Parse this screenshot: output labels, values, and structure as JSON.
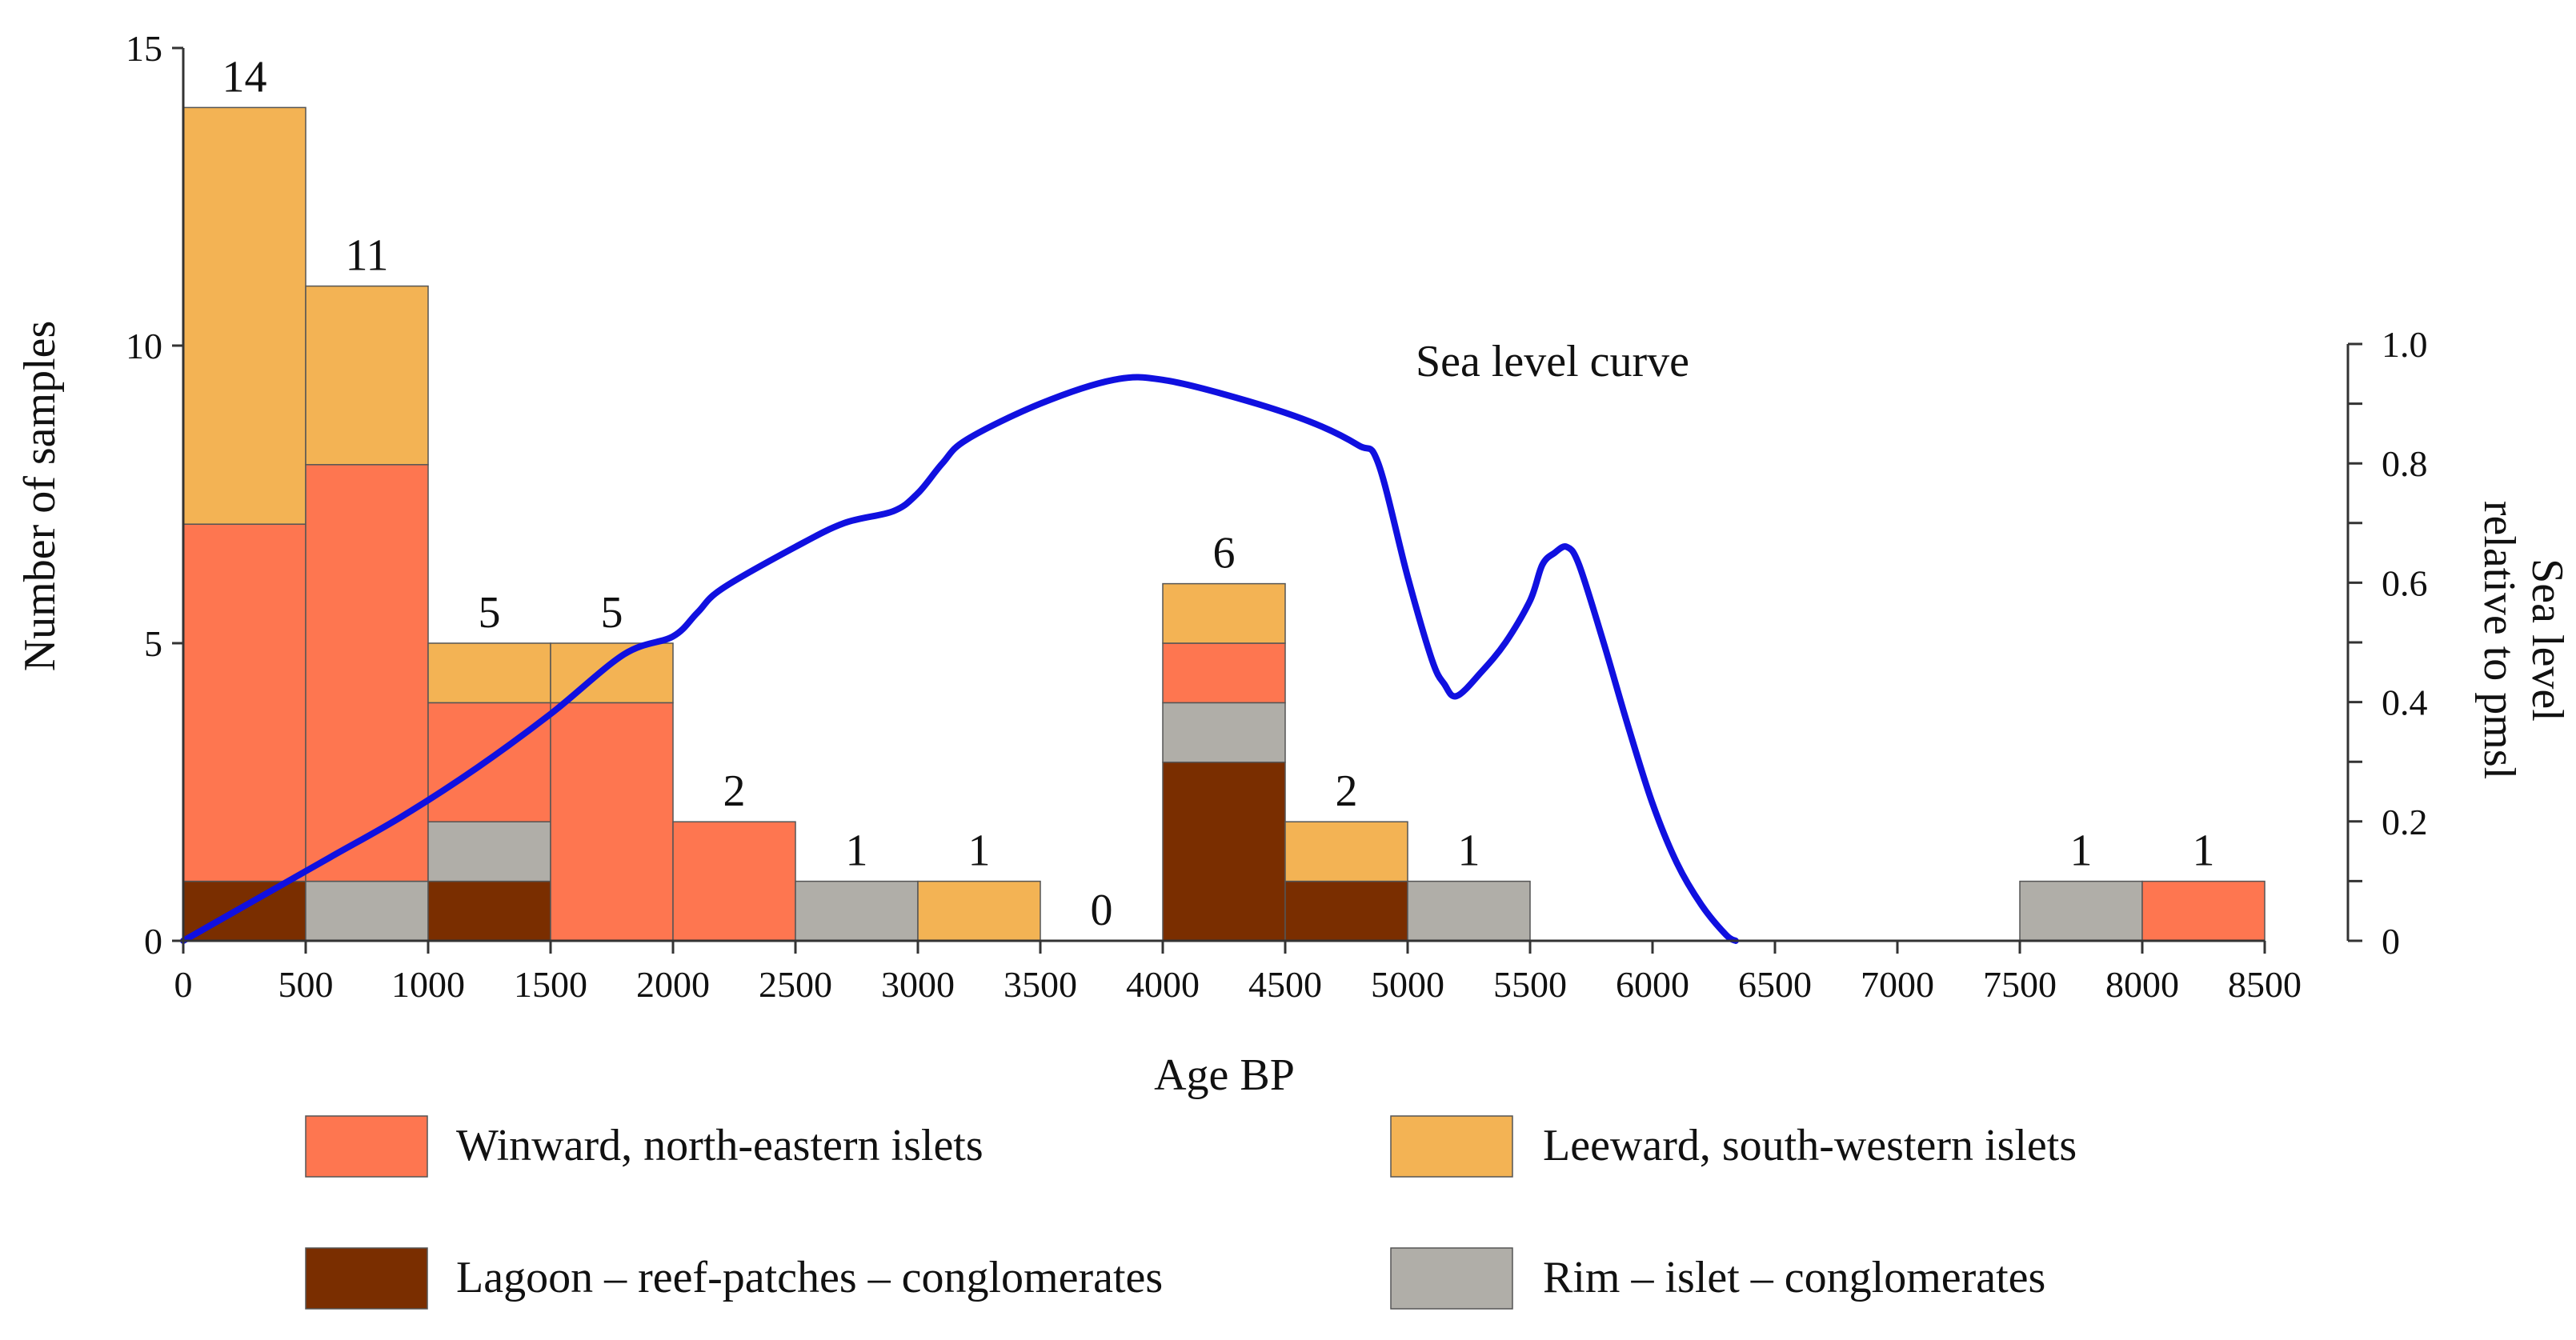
{
  "chart_data": {
    "type": "bar",
    "subtype": "stacked histogram with line overlay",
    "xlabel": "Age BP",
    "ylabel": "Number of samples",
    "y2label": [
      "Sea level",
      "relative to pmsl"
    ],
    "xlim": [
      0,
      8500
    ],
    "ylim": [
      0,
      15
    ],
    "y2lim": [
      0,
      1.0
    ],
    "x_ticks": [
      "0",
      "500",
      "1000",
      "1500",
      "2000",
      "2500",
      "3000",
      "3500",
      "4000",
      "4500",
      "5000",
      "5500",
      "6000",
      "6500",
      "7000",
      "7500",
      "8000",
      "8500"
    ],
    "y_ticks": [
      "0",
      "5",
      "10",
      "15"
    ],
    "y2_ticks": [
      "0",
      "0.2",
      "0.4",
      "0.6",
      "0.8",
      "1.0"
    ],
    "bins": [
      {
        "x0": 0,
        "x1": 500,
        "total": "14"
      },
      {
        "x0": 500,
        "x1": 1000,
        "total": "11"
      },
      {
        "x0": 1000,
        "x1": 1500,
        "total": "5"
      },
      {
        "x0": 1500,
        "x1": 2000,
        "total": "5"
      },
      {
        "x0": 2000,
        "x1": 2500,
        "total": "2"
      },
      {
        "x0": 2500,
        "x1": 3000,
        "total": "1"
      },
      {
        "x0": 3000,
        "x1": 3500,
        "total": "1"
      },
      {
        "x0": 3500,
        "x1": 4000,
        "total": "0"
      },
      {
        "x0": 4000,
        "x1": 4500,
        "total": "6"
      },
      {
        "x0": 4500,
        "x1": 5000,
        "total": "2"
      },
      {
        "x0": 5000,
        "x1": 5500,
        "total": "1"
      },
      {
        "x0": 7500,
        "x1": 8000,
        "total": "1"
      },
      {
        "x0": 8000,
        "x1": 8500,
        "total": "1"
      }
    ],
    "series": [
      {
        "name": "Lagoon – reef-patches – conglomerates",
        "key": "lagoon",
        "color": "#7a2e00",
        "values": [
          1,
          0,
          1,
          0,
          0,
          0,
          0,
          0,
          3,
          1,
          0,
          0,
          0
        ]
      },
      {
        "name": "Rim – islet – conglomerates",
        "key": "rim",
        "color": "#b0aea8",
        "values": [
          0,
          1,
          1,
          0,
          0,
          1,
          0,
          0,
          1,
          0,
          1,
          1,
          0
        ]
      },
      {
        "name": "Winward, north-eastern islets",
        "key": "winward",
        "color": "#fe7650",
        "values": [
          6,
          7,
          2,
          4,
          2,
          0,
          0,
          0,
          1,
          0,
          0,
          0,
          1
        ]
      },
      {
        "name": "Leeward, south-western islets",
        "key": "leeward",
        "color": "#f3b354",
        "values": [
          7,
          3,
          1,
          1,
          0,
          0,
          1,
          0,
          1,
          1,
          0,
          0,
          0
        ]
      }
    ],
    "line_series": {
      "name": "Sea level curve",
      "color": "#1010e0",
      "axis": "right",
      "points": [
        [
          0,
          0
        ],
        [
          300,
          0.07
        ],
        [
          600,
          0.14
        ],
        [
          900,
          0.21
        ],
        [
          1200,
          0.29
        ],
        [
          1500,
          0.38
        ],
        [
          1800,
          0.48
        ],
        [
          2000,
          0.51
        ],
        [
          2100,
          0.55
        ],
        [
          2200,
          0.59
        ],
        [
          2500,
          0.66
        ],
        [
          2700,
          0.7
        ],
        [
          2900,
          0.72
        ],
        [
          3000,
          0.75
        ],
        [
          3100,
          0.8
        ],
        [
          3200,
          0.84
        ],
        [
          3500,
          0.9
        ],
        [
          3800,
          0.94
        ],
        [
          4000,
          0.94
        ],
        [
          4300,
          0.91
        ],
        [
          4600,
          0.87
        ],
        [
          4800,
          0.83
        ],
        [
          4880,
          0.8
        ],
        [
          5000,
          0.61
        ],
        [
          5100,
          0.47
        ],
        [
          5150,
          0.43
        ],
        [
          5200,
          0.41
        ],
        [
          5300,
          0.45
        ],
        [
          5400,
          0.5
        ],
        [
          5500,
          0.57
        ],
        [
          5550,
          0.63
        ],
        [
          5600,
          0.65
        ],
        [
          5650,
          0.66
        ],
        [
          5700,
          0.63
        ],
        [
          5800,
          0.5
        ],
        [
          5900,
          0.36
        ],
        [
          6000,
          0.23
        ],
        [
          6100,
          0.13
        ],
        [
          6200,
          0.06
        ],
        [
          6300,
          0.01
        ],
        [
          6340,
          0
        ]
      ]
    }
  },
  "legend": [
    {
      "key": "winward",
      "label": "Winward, north-eastern islets",
      "color": "#fe7650"
    },
    {
      "key": "leeward",
      "label": "Leeward, south-western islets",
      "color": "#f3b354"
    },
    {
      "key": "lagoon",
      "label": "Lagoon – reef-patches – conglomerates",
      "color": "#7a2e00"
    },
    {
      "key": "rim",
      "label": "Rim – islet – conglomerates",
      "color": "#b0aea8"
    }
  ]
}
